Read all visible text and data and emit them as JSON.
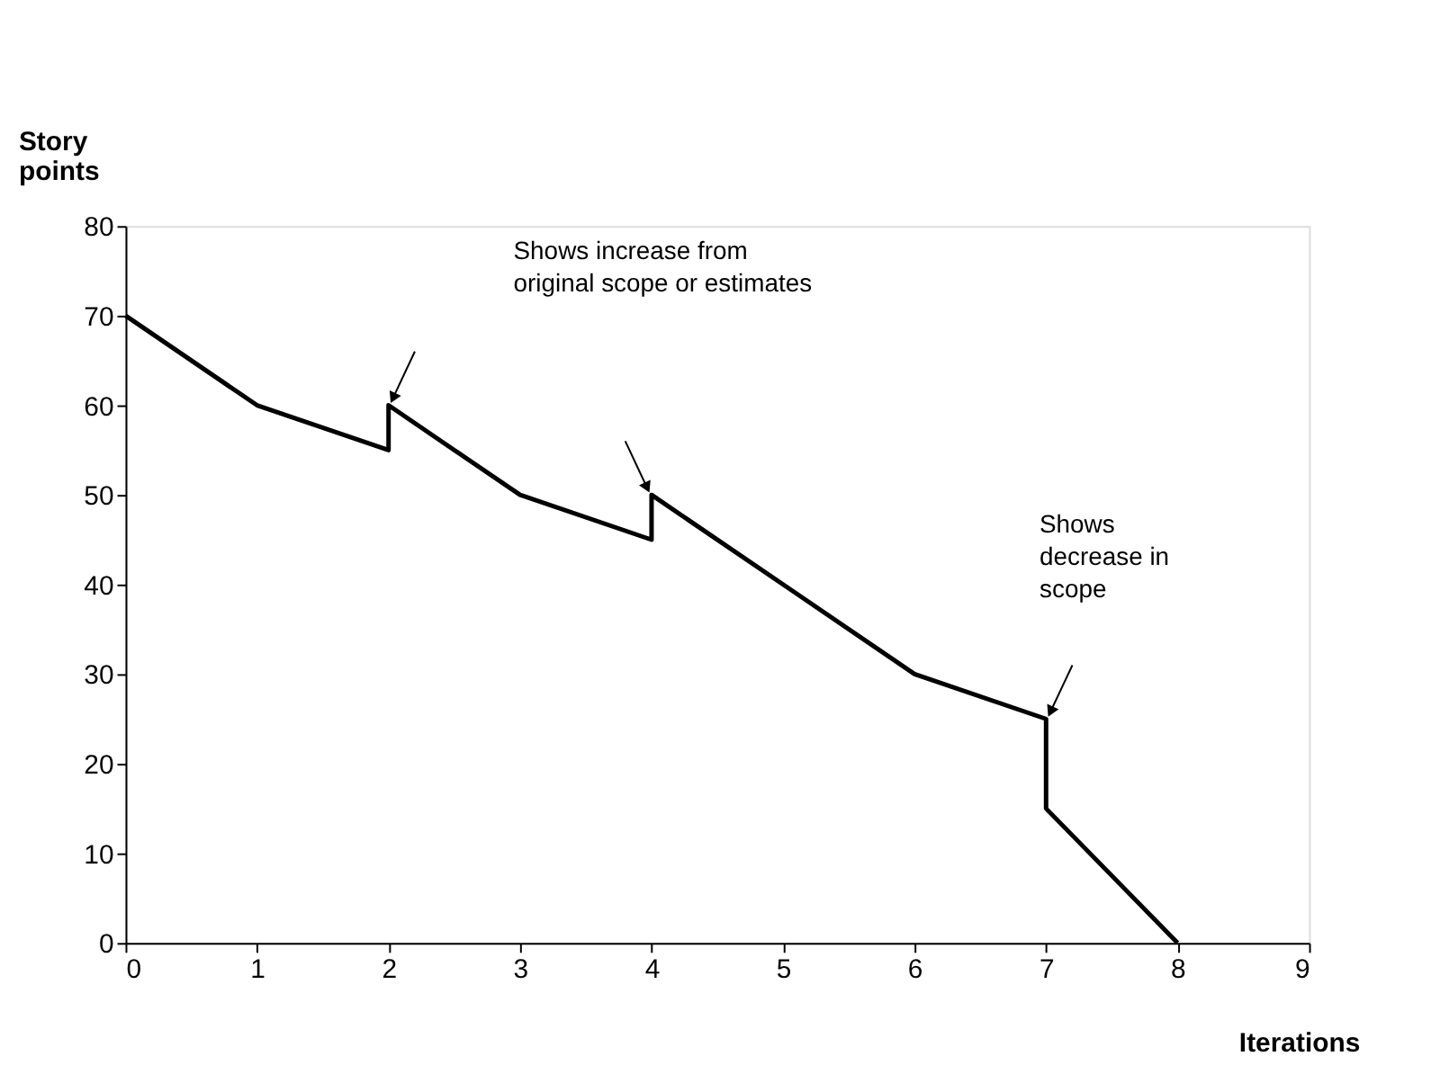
{
  "chart_data": {
    "type": "line",
    "xlabel": "Iterations",
    "ylabel": "Story\npoints",
    "x": [
      0,
      1,
      2,
      2,
      3,
      4,
      4,
      5,
      6,
      7,
      7,
      8
    ],
    "series": [
      {
        "color": "#000000",
        "values": [
          70,
          60,
          55,
          60,
          50,
          45,
          50,
          40,
          30,
          25,
          15,
          0
        ]
      }
    ],
    "xlim": [
      0,
      9
    ],
    "xticks": [
      0,
      1,
      2,
      3,
      4,
      5,
      6,
      7,
      8,
      9
    ],
    "ylim": [
      0,
      80
    ],
    "yticks": [
      0,
      10,
      20,
      30,
      40,
      50,
      60,
      70,
      80
    ],
    "grid": false,
    "marker": "none",
    "line_style": "solid",
    "annotations": [
      "Shows increase from\noriginal scope or estimates",
      "Shows\ndecrease in\nscope"
    ]
  }
}
